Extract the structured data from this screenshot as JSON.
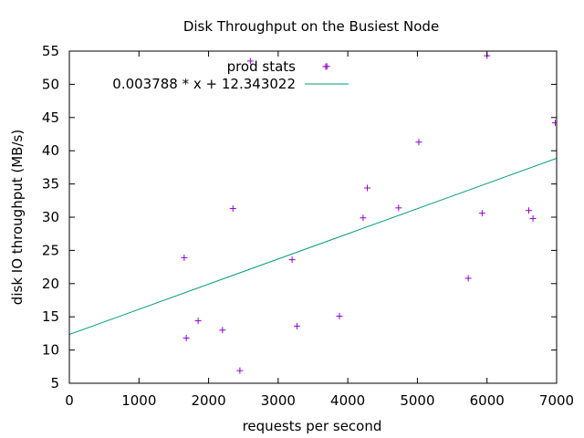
{
  "chart_data": {
    "type": "scatter",
    "title": "Disk Throughput on the Busiest Node",
    "xlabel": "requests per second",
    "ylabel": "disk IO throughput (MB/s)",
    "xlim": [
      0,
      7000
    ],
    "ylim": [
      5,
      55
    ],
    "xticks": [
      0,
      1000,
      2000,
      3000,
      4000,
      5000,
      6000,
      7000
    ],
    "yticks": [
      5,
      10,
      15,
      20,
      25,
      30,
      35,
      40,
      45,
      50,
      55
    ],
    "grid": false,
    "legend_position": "top-left",
    "series": [
      {
        "name": "prod stats",
        "kind": "points",
        "marker": "+",
        "color": "#9400d3",
        "points": [
          [
            1650,
            23.9
          ],
          [
            1680,
            11.8
          ],
          [
            1850,
            14.4
          ],
          [
            2200,
            13.0
          ],
          [
            2350,
            31.3
          ],
          [
            2450,
            6.9
          ],
          [
            2600,
            53.5
          ],
          [
            3200,
            23.6
          ],
          [
            3270,
            13.6
          ],
          [
            3880,
            15.1
          ],
          [
            3700,
            52.7
          ],
          [
            4220,
            29.9
          ],
          [
            4280,
            34.4
          ],
          [
            4730,
            31.4
          ],
          [
            5020,
            41.3
          ],
          [
            5730,
            20.8
          ],
          [
            5930,
            30.6
          ],
          [
            6000,
            54.3
          ],
          [
            6600,
            31.0
          ],
          [
            6660,
            29.8
          ],
          [
            6980,
            44.2
          ]
        ]
      },
      {
        "name": "0.003788 * x + 12.343022",
        "kind": "line",
        "color": "#009e73",
        "slope": 0.003788,
        "intercept": 12.343022
      }
    ]
  }
}
